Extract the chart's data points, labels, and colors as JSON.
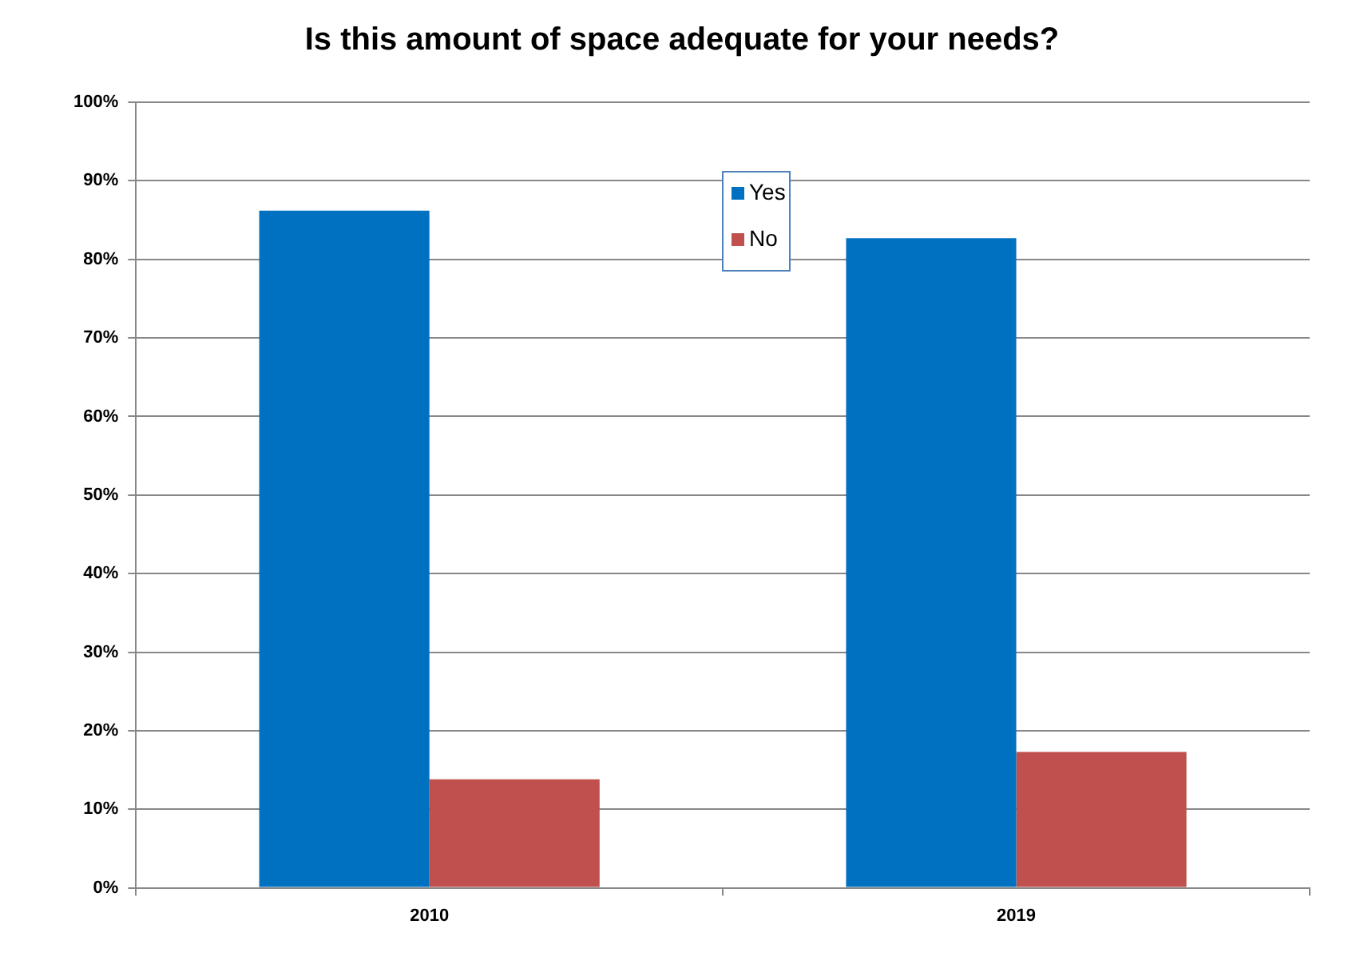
{
  "chart_data": {
    "type": "bar",
    "title": "Is this amount of space adequate for your needs?",
    "categories": [
      "2010",
      "2019"
    ],
    "series": [
      {
        "name": "Yes",
        "color": "#0070c0",
        "values": [
          86.2,
          82.7
        ]
      },
      {
        "name": "No",
        "color": "#c0504d",
        "values": [
          13.8,
          17.3
        ]
      }
    ],
    "ylim": [
      0,
      100
    ],
    "yticks": [
      {
        "value": 0,
        "label": "0%"
      },
      {
        "value": 10,
        "label": "10%"
      },
      {
        "value": 20,
        "label": "20%"
      },
      {
        "value": 30,
        "label": "30%"
      },
      {
        "value": 40,
        "label": "40%"
      },
      {
        "value": 50,
        "label": "50%"
      },
      {
        "value": 60,
        "label": "60%"
      },
      {
        "value": 70,
        "label": "70%"
      },
      {
        "value": 80,
        "label": "80%"
      },
      {
        "value": 90,
        "label": "90%"
      },
      {
        "value": 100,
        "label": "100%"
      }
    ],
    "grid": "y",
    "legend": "top"
  }
}
